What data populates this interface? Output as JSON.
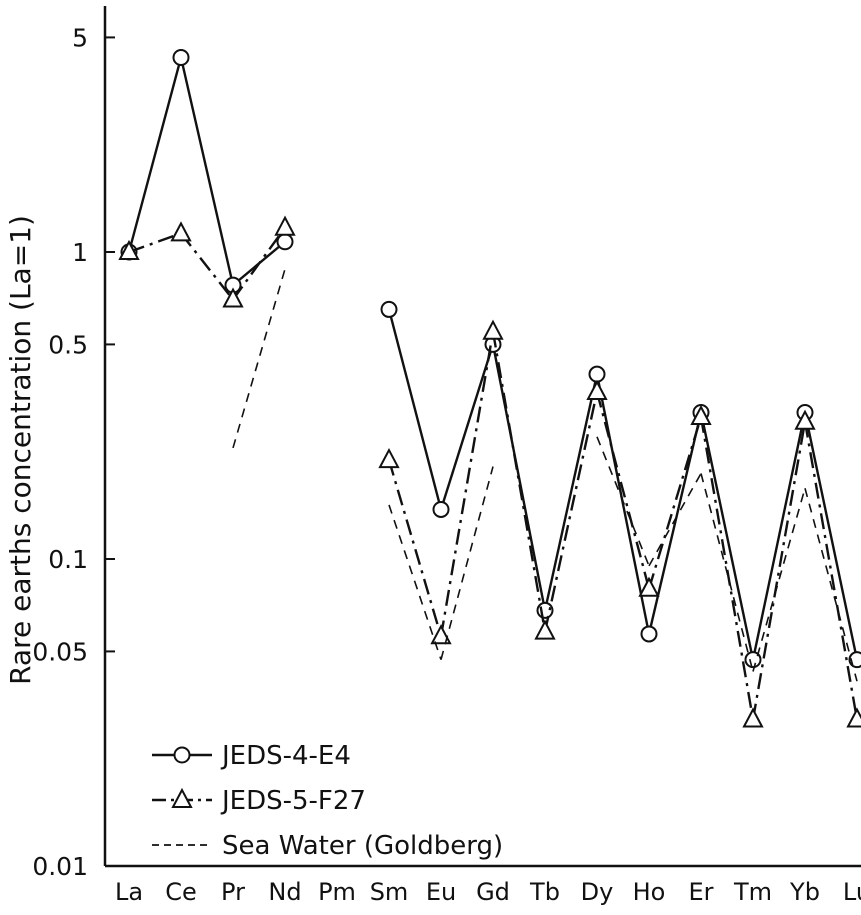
{
  "chart_data": {
    "type": "line",
    "title": "",
    "ylabel": "Rare earths concentration (La=1)",
    "xlabel": "",
    "yscale": "log",
    "ylim": [
      0.01,
      6
    ],
    "grid": false,
    "legend_position": "bottom-left",
    "categories": [
      "La",
      "Ce",
      "Pr",
      "Nd",
      "Pm",
      "Sm",
      "Eu",
      "Gd",
      "Tb",
      "Dy",
      "Ho",
      "Er",
      "Tm",
      "Yb",
      "Lu"
    ],
    "yticks": [
      {
        "value": 5,
        "label": "5"
      },
      {
        "value": 1,
        "label": "1"
      },
      {
        "value": 0.5,
        "label": "0.5"
      },
      {
        "value": 0.1,
        "label": "0.1"
      },
      {
        "value": 0.05,
        "label": "0.05"
      },
      {
        "value": 0.01,
        "label": "0.01"
      }
    ],
    "series": [
      {
        "name": "JEDS-4-E4",
        "marker": "circle",
        "line_style": "solid",
        "color": "#111111",
        "values": [
          1,
          4.3,
          0.78,
          1.08,
          null,
          0.65,
          0.145,
          0.5,
          0.068,
          0.4,
          0.057,
          0.3,
          0.047,
          0.3,
          0.047
        ]
      },
      {
        "name": "JEDS-5-F27",
        "marker": "triangle",
        "line_style": "dashdot",
        "color": "#111111",
        "values": [
          1,
          1.15,
          0.7,
          1.2,
          null,
          0.21,
          0.056,
          0.55,
          0.058,
          0.35,
          0.08,
          0.29,
          0.03,
          0.28,
          0.03
        ]
      },
      {
        "name": "Sea Water (Goldberg)",
        "marker": "none",
        "line_style": "dashed",
        "color": "#111111",
        "values": [
          1,
          null,
          0.23,
          0.88,
          null,
          0.15,
          0.047,
          0.2,
          null,
          0.25,
          0.095,
          0.19,
          0.043,
          0.17,
          0.04
        ]
      }
    ]
  }
}
